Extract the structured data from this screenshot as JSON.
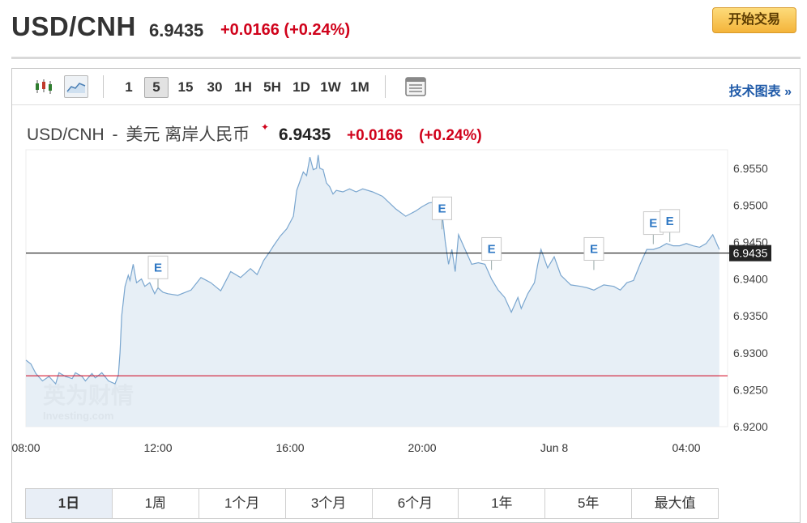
{
  "header": {
    "pair": "USD/CNH",
    "price": "6.9435",
    "change": "+0.0166 (+0.24%)",
    "trade_button": "开始交易"
  },
  "toolbar": {
    "chart_type_icons": [
      "candlestick-icon",
      "line-chart-icon"
    ],
    "timeframes": [
      "1",
      "5",
      "15",
      "30",
      "1H",
      "5H",
      "1D",
      "1W",
      "1M"
    ],
    "active_timeframe": "5",
    "settings_icon": "chart-settings-icon",
    "tech_link": "技术图表 »"
  },
  "chart_title": {
    "pair": "USD/CNH",
    "separator": "-",
    "description": "美元 离岸人民币",
    "price": "6.9435",
    "change": "+0.0166",
    "change_pct": "(+0.24%)"
  },
  "watermark": {
    "cn": "英为财情",
    "en": "Investing.com"
  },
  "ranges": [
    "1日",
    "1周",
    "1个月",
    "3个月",
    "6个月",
    "1年",
    "5年",
    "最大值"
  ],
  "active_range": "1日",
  "colors": {
    "line": "#7aa6cf",
    "area": "#e3ecf5",
    "up": "#d0021b",
    "current_line": "#000000",
    "prev_close_line": "#d0021b",
    "price_tag_bg": "#222222",
    "event_marker": "#2f78c4"
  },
  "chart_data": {
    "type": "area",
    "x_ticks": [
      "08:00",
      "12:00",
      "16:00",
      "20:00",
      "Jun 8",
      "04:00"
    ],
    "y_ticks": [
      "6.9550",
      "6.9500",
      "6.9450",
      "6.9400",
      "6.9350",
      "6.9300",
      "6.9250",
      "6.9200"
    ],
    "ylim": [
      6.92,
      6.9575
    ],
    "xlim": [
      0,
      21.25
    ],
    "current_price": 6.9435,
    "current_price_label": "6.9435",
    "previous_close": 6.9269,
    "event_marker_label": "E",
    "events": [
      {
        "x": 4.0,
        "y": 6.9385
      },
      {
        "x": 12.6,
        "y": 6.9465
      },
      {
        "x": 14.1,
        "y": 6.941
      },
      {
        "x": 17.2,
        "y": 6.941
      },
      {
        "x": 19.0,
        "y": 6.9445
      },
      {
        "x": 19.5,
        "y": 6.9448
      }
    ],
    "series": [
      {
        "x": [
          0.0,
          0.15,
          0.3,
          0.5,
          0.7,
          0.9,
          1.0,
          1.2,
          1.4,
          1.5,
          1.7,
          1.8,
          2.0,
          2.1,
          2.3,
          2.5,
          2.7,
          2.8,
          2.85,
          2.9,
          3.0,
          3.1,
          3.15,
          3.25,
          3.35,
          3.5,
          3.6,
          3.75,
          3.9,
          4.0,
          4.15,
          4.3,
          4.6,
          5.0,
          5.3,
          5.6,
          5.9,
          6.2,
          6.5,
          6.8,
          7.0,
          7.2,
          7.4,
          7.5,
          7.7,
          7.9,
          8.1,
          8.2,
          8.4,
          8.5,
          8.6,
          8.7,
          8.8,
          8.85,
          8.9,
          9.0,
          9.1,
          9.2,
          9.3,
          9.4,
          9.6,
          9.8,
          10.0,
          10.2,
          10.5,
          10.8,
          11.2,
          11.5,
          11.8,
          12.0,
          12.2,
          12.5,
          12.6,
          12.7,
          12.8,
          12.9,
          13.0,
          13.1,
          13.3,
          13.5,
          13.7,
          13.9,
          14.1,
          14.3,
          14.5,
          14.7,
          14.9,
          15.0,
          15.2,
          15.4,
          15.5,
          15.6,
          15.8,
          16.0,
          16.2,
          16.5,
          16.8,
          17.0,
          17.2,
          17.5,
          17.8,
          18.0,
          18.2,
          18.4,
          18.6,
          18.8,
          19.0,
          19.2,
          19.4,
          19.6,
          19.8,
          20.0,
          20.2,
          20.4,
          20.6,
          20.8,
          21.0
        ],
        "y": [
          6.929,
          6.9285,
          6.9272,
          6.9262,
          6.9268,
          6.9258,
          6.9273,
          6.9268,
          6.9265,
          6.9273,
          6.9268,
          6.9262,
          6.9272,
          6.9266,
          6.9273,
          6.9262,
          6.9258,
          6.927,
          6.93,
          6.935,
          6.939,
          6.9405,
          6.9398,
          6.942,
          6.9395,
          6.94,
          6.939,
          6.9395,
          6.938,
          6.9388,
          6.9382,
          6.938,
          6.9378,
          6.9385,
          6.9402,
          6.9395,
          6.9384,
          6.941,
          6.9402,
          6.9414,
          6.9406,
          6.9425,
          6.9438,
          6.9445,
          6.9458,
          6.9468,
          6.9485,
          6.952,
          6.9545,
          6.954,
          6.9565,
          6.9548,
          6.955,
          6.9568,
          6.955,
          6.9548,
          6.953,
          6.9525,
          6.9515,
          6.952,
          6.9518,
          6.9522,
          6.9518,
          6.9522,
          6.9518,
          6.9512,
          6.9495,
          6.9485,
          6.9492,
          6.9498,
          6.9503,
          6.9505,
          6.949,
          6.945,
          6.942,
          6.944,
          6.941,
          6.946,
          6.944,
          6.942,
          6.9422,
          6.942,
          6.94,
          6.9385,
          6.9375,
          6.9355,
          6.9375,
          6.936,
          6.938,
          6.9395,
          6.942,
          6.944,
          6.9415,
          6.943,
          6.9405,
          6.9392,
          6.939,
          6.9388,
          6.9385,
          6.9392,
          6.939,
          6.9385,
          6.9395,
          6.9398,
          6.942,
          6.944,
          6.944,
          6.9443,
          6.9448,
          6.9445,
          6.9445,
          6.9448,
          6.9445,
          6.9443,
          6.9448,
          6.946,
          6.944
        ]
      }
    ]
  }
}
